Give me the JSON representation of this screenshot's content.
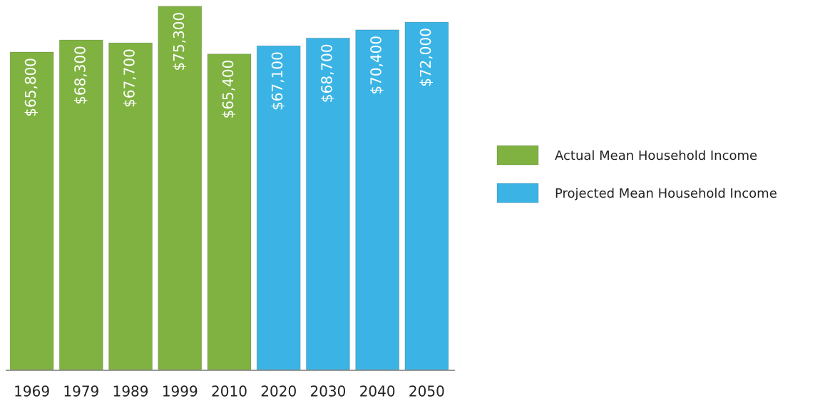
{
  "chart_data": {
    "type": "bar",
    "categories": [
      "1969",
      "1979",
      "1989",
      "1999",
      "2010",
      "2020",
      "2030",
      "2040",
      "2050"
    ],
    "series": [
      {
        "name": "Actual Mean Household Income",
        "color": "#7fb241",
        "values": [
          65800,
          68300,
          67700,
          75300,
          65400,
          null,
          null,
          null,
          null
        ],
        "value_labels": [
          "$65,800",
          "$68,300",
          "$67,700",
          "$75,300",
          "$65,400",
          null,
          null,
          null,
          null
        ]
      },
      {
        "name": "Projected Mean Household Income",
        "color": "#3bb4e5",
        "values": [
          null,
          null,
          null,
          null,
          null,
          67100,
          68700,
          70400,
          72000
        ],
        "value_labels": [
          null,
          null,
          null,
          null,
          null,
          "$67,100",
          "$68,700",
          "$70,400",
          "$72,000"
        ]
      }
    ],
    "ylim": [
      0,
      76000
    ],
    "legend": "right"
  }
}
